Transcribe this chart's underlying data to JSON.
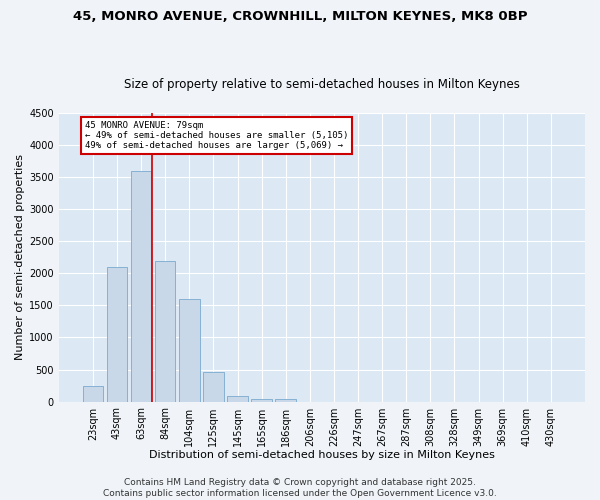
{
  "title_line1": "45, MONRO AVENUE, CROWNHILL, MILTON KEYNES, MK8 0BP",
  "title_line2": "Size of property relative to semi-detached houses in Milton Keynes",
  "xlabel": "Distribution of semi-detached houses by size in Milton Keynes",
  "ylabel": "Number of semi-detached properties",
  "bar_labels": [
    "23sqm",
    "43sqm",
    "63sqm",
    "84sqm",
    "104sqm",
    "125sqm",
    "145sqm",
    "165sqm",
    "186sqm",
    "206sqm",
    "226sqm",
    "247sqm",
    "267sqm",
    "287sqm",
    "308sqm",
    "328sqm",
    "349sqm",
    "369sqm",
    "410sqm",
    "430sqm"
  ],
  "bar_values": [
    250,
    2100,
    3600,
    2200,
    1600,
    460,
    90,
    45,
    35,
    0,
    0,
    0,
    0,
    0,
    0,
    0,
    0,
    0,
    0,
    0
  ],
  "ylim": [
    0,
    4500
  ],
  "yticks": [
    0,
    500,
    1000,
    1500,
    2000,
    2500,
    3000,
    3500,
    4000,
    4500
  ],
  "bar_color": "#c8d8e8",
  "bar_edge_color": "#7aaace",
  "bg_color": "#dce8f4",
  "grid_color": "#ffffff",
  "annotation_text": "45 MONRO AVENUE: 79sqm\n← 49% of semi-detached houses are smaller (5,105)\n49% of semi-detached houses are larger (5,069) →",
  "vline_color": "#cc0000",
  "box_edge_color": "#cc0000",
  "footer": "Contains HM Land Registry data © Crown copyright and database right 2025.\nContains public sector information licensed under the Open Government Licence v3.0.",
  "annotation_fontsize": 6.5,
  "title_fontsize1": 9.5,
  "title_fontsize2": 8.5,
  "xlabel_fontsize": 8.0,
  "ylabel_fontsize": 8.0,
  "tick_fontsize": 7.0,
  "footer_fontsize": 6.5,
  "fig_bg_color": "#f0f4f8"
}
